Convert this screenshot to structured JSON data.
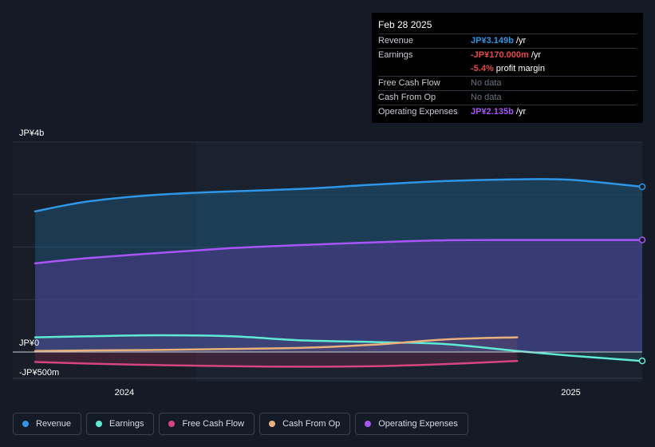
{
  "tooltip": {
    "date": "Feb 28 2025",
    "rows": [
      {
        "key": "Revenue",
        "value": "JP¥3.149b",
        "suffix": " /yr"
      },
      {
        "key": "Earnings",
        "value": "-JP¥170.000m",
        "suffix": " /yr"
      },
      {
        "key": "",
        "value": "-5.4%",
        "suffix": " profit margin"
      },
      {
        "key": "Free Cash Flow",
        "value": "No data",
        "suffix": ""
      },
      {
        "key": "Cash From Op",
        "value": "No data",
        "suffix": ""
      },
      {
        "key": "Operating Expenses",
        "value": "JP¥2.135b",
        "suffix": " /yr"
      }
    ]
  },
  "legend": [
    {
      "label": "Revenue",
      "color": "#2e96e6"
    },
    {
      "label": "Earnings",
      "color": "#5eead4"
    },
    {
      "label": "Free Cash Flow",
      "color": "#d6457f"
    },
    {
      "label": "Cash From Op",
      "color": "#e8b07a"
    },
    {
      "label": "Operating Expenses",
      "color": "#a855f7"
    }
  ],
  "chart_data": {
    "type": "area",
    "y_top_label": "JP¥4b",
    "y_zero_label": "JP¥0",
    "y_bottom_label": "-JP¥500m",
    "ylim": [
      -500,
      4000
    ],
    "y_unit": "JP¥ millions",
    "x_tick_labels": [
      "2024",
      "2025"
    ],
    "x_ticks": [
      2024.0,
      2025.0
    ],
    "xlim": [
      2023.75,
      2025.16
    ],
    "past_region_end": 2024.16,
    "series": [
      {
        "name": "Revenue",
        "color": "#2e96e6",
        "x": [
          2023.8,
          2023.92,
          2024.08,
          2024.24,
          2024.4,
          2024.56,
          2024.72,
          2024.88,
          2025.0,
          2025.16
        ],
        "y": [
          2680,
          2870,
          3000,
          3060,
          3110,
          3190,
          3260,
          3290,
          3280,
          3149
        ]
      },
      {
        "name": "Earnings",
        "color": "#5eead4",
        "x": [
          2023.8,
          2023.92,
          2024.08,
          2024.24,
          2024.4,
          2024.56,
          2024.72,
          2024.88,
          2025.0,
          2025.16
        ],
        "y": [
          280,
          300,
          320,
          300,
          220,
          190,
          150,
          20,
          -70,
          -170
        ]
      },
      {
        "name": "Free Cash Flow",
        "color": "#d6457f",
        "x": [
          2023.8,
          2023.92,
          2024.08,
          2024.24,
          2024.4,
          2024.56,
          2024.72,
          2024.88
        ],
        "y": [
          -190,
          -220,
          -250,
          -270,
          -280,
          -270,
          -230,
          -170
        ]
      },
      {
        "name": "Cash From Op",
        "color": "#e8b07a",
        "x": [
          2023.8,
          2023.92,
          2024.08,
          2024.24,
          2024.4,
          2024.56,
          2024.72,
          2024.88
        ],
        "y": [
          20,
          30,
          40,
          60,
          80,
          140,
          240,
          280
        ]
      },
      {
        "name": "Operating Expenses",
        "color": "#a855f7",
        "x": [
          2023.8,
          2023.92,
          2024.08,
          2024.24,
          2024.4,
          2024.56,
          2024.72,
          2024.88,
          2025.0,
          2025.16
        ],
        "y": [
          1690,
          1790,
          1890,
          1980,
          2040,
          2090,
          2130,
          2135,
          2135,
          2135
        ]
      }
    ]
  }
}
